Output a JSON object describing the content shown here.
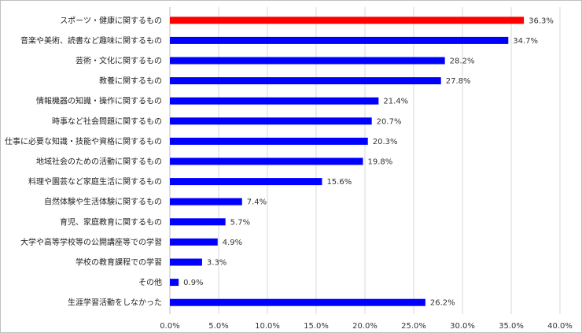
{
  "chart_data": {
    "type": "bar",
    "orientation": "horizontal",
    "categories": [
      "スポーツ・健康に関するもの",
      "音楽や美術、読書など趣味に関するもの",
      "芸術・文化に関するもの",
      "教養に関するもの",
      "情報機器の知識・操作に関するもの",
      "時事など社会問題に関するもの",
      "仕事に必要な知識・技能や資格に関するもの",
      "地域社会のための活動に関するもの",
      "料理や園芸など家庭生活に関するもの",
      "自然体験や生活体験に関するもの",
      "育児、家庭教育に関するもの",
      "大学や高等学校等の公開講座等での学習",
      "学校の教育課程での学習",
      "その他",
      "生涯学習活動をしなかった"
    ],
    "values": [
      36.3,
      34.7,
      28.2,
      27.8,
      21.4,
      20.7,
      20.3,
      19.8,
      15.6,
      7.4,
      5.7,
      4.9,
      3.3,
      0.9,
      26.2
    ],
    "value_labels": [
      "36.3%",
      "34.7%",
      "28.2%",
      "27.8%",
      "21.4%",
      "20.7%",
      "20.3%",
      "19.8%",
      "15.6%",
      "7.4%",
      "5.7%",
      "4.9%",
      "3.3%",
      "0.9%",
      "26.2%"
    ],
    "bar_colors": [
      "#ff0000",
      "#0000ff",
      "#0000ff",
      "#0000ff",
      "#0000ff",
      "#0000ff",
      "#0000ff",
      "#0000ff",
      "#0000ff",
      "#0000ff",
      "#0000ff",
      "#0000ff",
      "#0000ff",
      "#0000ff",
      "#0000ff"
    ],
    "xlim": [
      0,
      40
    ],
    "xticks": [
      0,
      5,
      10,
      15,
      20,
      25,
      30,
      35,
      40
    ],
    "xtick_labels": [
      "0.0%",
      "5.0%",
      "10.0%",
      "15.0%",
      "20.0%",
      "25.0%",
      "30.0%",
      "35.0%",
      "40.0%"
    ],
    "grid": true,
    "legend": "none",
    "title": "",
    "xlabel": "",
    "ylabel": ""
  }
}
